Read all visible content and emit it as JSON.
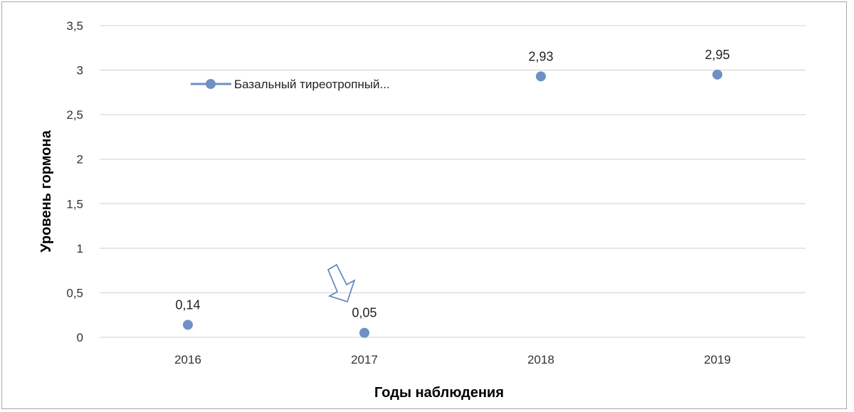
{
  "chart_data": {
    "type": "scatter",
    "title": "",
    "xlabel": "Годы  наблюдения",
    "ylabel": "Уровень   гормона",
    "categories": [
      "2016",
      "2017",
      "2018",
      "2019"
    ],
    "series": [
      {
        "name": "Базальный тиреотропный...",
        "values": [
          0.14,
          0.05,
          2.93,
          2.95
        ],
        "data_labels": [
          "0,14",
          "0,05",
          "2,93",
          "2,95"
        ],
        "color": "#6f8fc6"
      }
    ],
    "ylim": [
      0,
      3.5
    ],
    "yticks": [
      0,
      0.5,
      1,
      1.5,
      2,
      2.5,
      3,
      3.5
    ],
    "ytick_labels": [
      "0",
      "0,5",
      "1",
      "1,5",
      "2",
      "2,5",
      "3",
      "3,5"
    ],
    "grid": "horizontal",
    "legend": "top-left",
    "annotation": {
      "type": "arrow",
      "points_to": "2017",
      "color": "#5b7fbf"
    }
  }
}
